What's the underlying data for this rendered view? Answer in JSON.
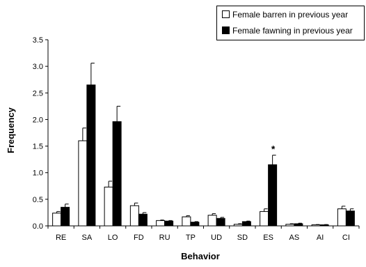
{
  "chart_data": {
    "type": "bar",
    "xlabel": "Behavior",
    "ylabel": "Frequency",
    "ylim": [
      0,
      3.5
    ],
    "yticks": [
      "0.0",
      "0.5",
      "1.0",
      "1.5",
      "2.0",
      "2.5",
      "3.0",
      "3.5"
    ],
    "grid": false,
    "legend_position": "top-right",
    "error_bars": true,
    "categories": [
      "RE",
      "SA",
      "LO",
      "FD",
      "RU",
      "TP",
      "UD",
      "SD",
      "ES",
      "AS",
      "AI",
      "CI"
    ],
    "series": [
      {
        "name": "Female barren in previous year",
        "color": "#ffffff",
        "values": [
          0.24,
          1.6,
          0.73,
          0.38,
          0.1,
          0.17,
          0.2,
          0.03,
          0.27,
          0.03,
          0.02,
          0.32
        ],
        "errors": [
          0.03,
          0.24,
          0.11,
          0.05,
          0.01,
          0.02,
          0.03,
          0.01,
          0.05,
          0.01,
          0.005,
          0.05
        ]
      },
      {
        "name": "Female fawning in previous year",
        "color": "#000000",
        "values": [
          0.35,
          2.65,
          1.96,
          0.22,
          0.09,
          0.07,
          0.14,
          0.08,
          1.15,
          0.04,
          0.02,
          0.28
        ],
        "errors": [
          0.06,
          0.41,
          0.29,
          0.03,
          0.01,
          0.01,
          0.02,
          0.01,
          0.18,
          0.01,
          0.005,
          0.04
        ]
      }
    ],
    "annotations": [
      {
        "text": "*",
        "category": "ES",
        "series": 1
      }
    ]
  }
}
